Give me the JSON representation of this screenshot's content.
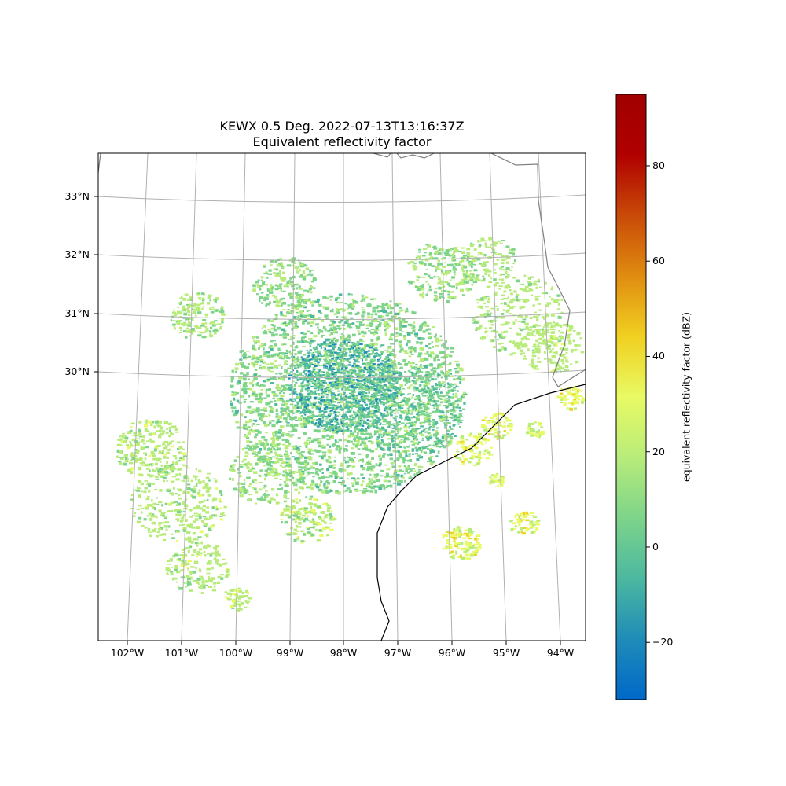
{
  "map": {
    "title_line1": "KEWX 0.5 Deg. 2022-07-13T13:16:37Z",
    "title_line2": "Equivalent reflectivity factor",
    "lon_ticks": [
      "102°W",
      "101°W",
      "100°W",
      "99°W",
      "98°W",
      "97°W",
      "96°W",
      "95°W",
      "94°W"
    ],
    "lat_ticks": [
      "33°N",
      "32°N",
      "31°N",
      "30°N"
    ],
    "radar_site": "KEWX",
    "elevation": "0.5 Deg.",
    "colormap": "ChaseSpectral",
    "gridlines": true
  },
  "colorbar": {
    "label": "equivalent reflectivity factor (dBZ)",
    "ticks": [
      "80",
      "60",
      "40",
      "20",
      "0",
      "−20"
    ],
    "range": [
      -32,
      95
    ],
    "colors": [
      "#0068c8",
      "#1f8cb8",
      "#4cb8a0",
      "#7dd48a",
      "#b8ec7a",
      "#e8fa64",
      "#f0d020",
      "#e08c10",
      "#c84a08",
      "#b00000",
      "#a00000"
    ]
  }
}
